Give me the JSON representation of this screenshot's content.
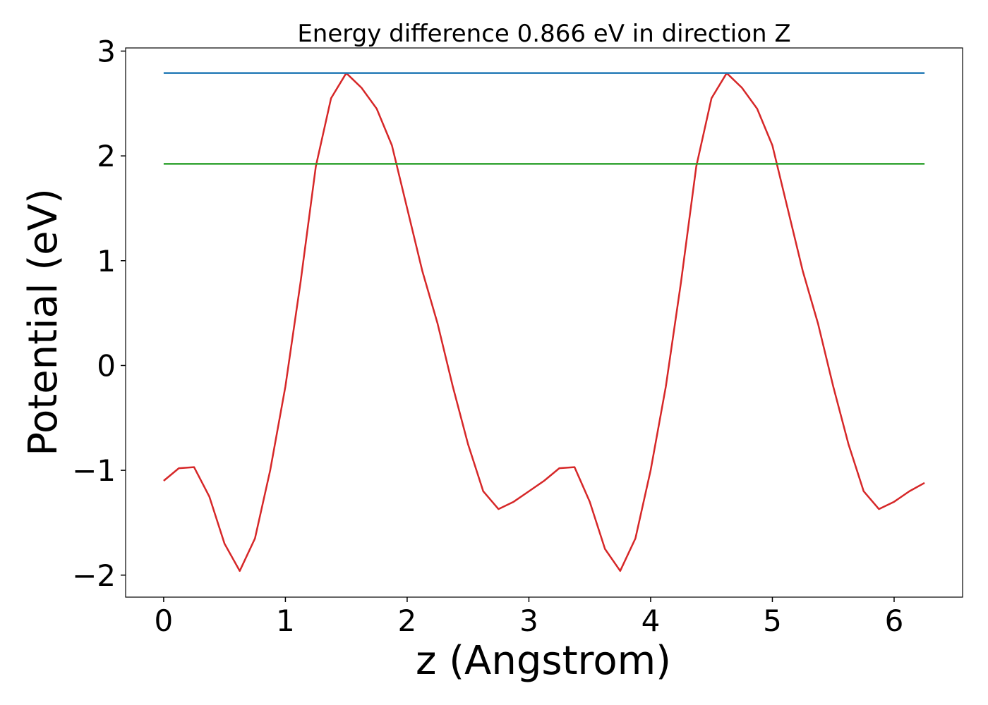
{
  "chart_data": {
    "type": "line",
    "title": "Energy difference 0.866 eV in direction Z",
    "xlabel": "z (Angstrom)",
    "ylabel": "Potential (eV)",
    "series": [
      {
        "color": "#d62728",
        "x": [
          0,
          0.125,
          0.25,
          0.375,
          0.5,
          0.625,
          0.75,
          0.875,
          1,
          1.125,
          1.25,
          1.375,
          1.5,
          1.625,
          1.75,
          1.875,
          2,
          2.125,
          2.25,
          2.375,
          2.5,
          2.625,
          2.75,
          2.875,
          3,
          3.125,
          3.25,
          3.375,
          3.5,
          3.625,
          3.75,
          3.875,
          4,
          4.125,
          4.25,
          4.375,
          4.5,
          4.625,
          4.75,
          4.875,
          5,
          5.125,
          5.25,
          5.375,
          5.5,
          5.625,
          5.75,
          5.875,
          6,
          6.125,
          6.25
        ],
        "values": [
          -1.1,
          -0.98,
          -0.97,
          -1.25,
          -1.7,
          -1.96,
          -1.65,
          -1.0,
          -0.2,
          0.8,
          1.9,
          2.55,
          2.79,
          2.65,
          2.45,
          2.1,
          1.5,
          0.9,
          0.4,
          -0.2,
          -0.75,
          -1.2,
          -1.37,
          -1.3,
          -1.2,
          -1.1,
          -0.98,
          -0.97,
          -1.3,
          -1.75,
          -1.96,
          -1.65,
          -1.0,
          -0.2,
          0.8,
          1.9,
          2.55,
          2.79,
          2.65,
          2.45,
          2.1,
          1.5,
          0.9,
          0.4,
          -0.2,
          -0.75,
          -1.2,
          -1.37,
          -1.3,
          -1.2,
          -1.12
        ]
      },
      {
        "color": "#1f77b4",
        "x": [
          0,
          6.25
        ],
        "values": [
          2.79,
          2.79
        ]
      },
      {
        "color": "#2ca02c",
        "x": [
          0,
          6.25
        ],
        "values": [
          1.924,
          1.924
        ]
      }
    ],
    "xlim": [
      -0.3125,
      6.5625
    ],
    "xticks": [
      0,
      1,
      2,
      3,
      4,
      5,
      6
    ],
    "ylim": [
      -2.21,
      3.03
    ],
    "yticks": [
      {
        "value": -2,
        "label": "−2"
      },
      {
        "value": -1,
        "label": "−1"
      },
      0,
      1,
      2,
      3
    ],
    "grid": false
  }
}
